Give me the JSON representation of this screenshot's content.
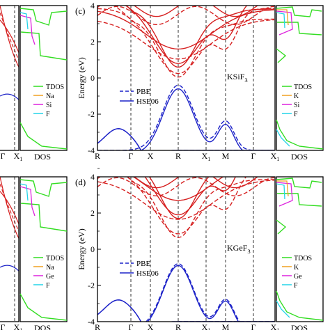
{
  "panels": [
    {
      "id": "c",
      "panel_label": "(c)",
      "material_base": "KSiF",
      "material_sub": "3",
      "ylabel": "Energy (eV)",
      "yticks": [
        "4",
        "2",
        "0",
        "-2",
        "-4"
      ],
      "kpath": [
        "R",
        "Γ",
        "X",
        "R",
        "X1",
        "M",
        "Γ",
        "X1"
      ],
      "legend_band": [
        "PBE",
        "HSE06"
      ],
      "dos_label": "DOS",
      "dos_legend": [
        "TDOS",
        "K",
        "Si",
        "F"
      ],
      "left_dos_legend": [
        "TDOS",
        "Na",
        "Si",
        "F"
      ],
      "left_xticks": [
        "Γ",
        "X1"
      ],
      "left_dos_label": "DOS"
    },
    {
      "id": "d",
      "panel_label": "(d)",
      "material_base": "KGeF",
      "material_sub": "3",
      "ylabel": "Energy (eV)",
      "yticks": [
        "4",
        "2",
        "0",
        "-2",
        "-4"
      ],
      "kpath": [
        "R",
        "Γ",
        "X",
        "R",
        "X1",
        "M",
        "Γ",
        "X1"
      ],
      "legend_band": [
        "PBE",
        "HSE06"
      ],
      "dos_label": "DOS",
      "dos_legend": [
        "TDOS",
        "K",
        "Ge",
        "F"
      ],
      "left_dos_legend": [
        "TDOS",
        "Na",
        "Ge",
        "F"
      ],
      "left_xticks": [
        "Γ",
        "X1"
      ],
      "left_dos_label": "DOS"
    }
  ],
  "colors": {
    "conduction": "#d62020",
    "valence": "#1c22c8",
    "tdos": "#33dd22",
    "cation": "#f0a020",
    "metalloid": "#dd22dd",
    "fluorine": "#22d4e8",
    "axis": "#000000"
  },
  "chart_data": [
    {
      "type": "line",
      "title": "KSiF3",
      "ylabel": "Energy (eV)",
      "ylim": [
        -4,
        4
      ],
      "x": [
        "R",
        "Γ",
        "X",
        "R",
        "X1",
        "M",
        "Γ",
        "X1"
      ],
      "series": [
        {
          "name": "PBE",
          "valence_max": -0.4,
          "conduction_min": 0.55
        },
        {
          "name": "HSE06",
          "valence_max": -0.6,
          "conduction_min": 0.65
        }
      ]
    },
    {
      "type": "line",
      "title": "KGeF3",
      "ylabel": "Energy (eV)",
      "ylim": [
        -4,
        4
      ],
      "x": [
        "R",
        "Γ",
        "X",
        "R",
        "X1",
        "M",
        "Γ",
        "X1"
      ],
      "series": [
        {
          "name": "PBE",
          "valence_max": -0.8,
          "conduction_min": 1.1
        },
        {
          "name": "HSE06",
          "valence_max": -0.9,
          "conduction_min": 1.7
        }
      ]
    }
  ]
}
